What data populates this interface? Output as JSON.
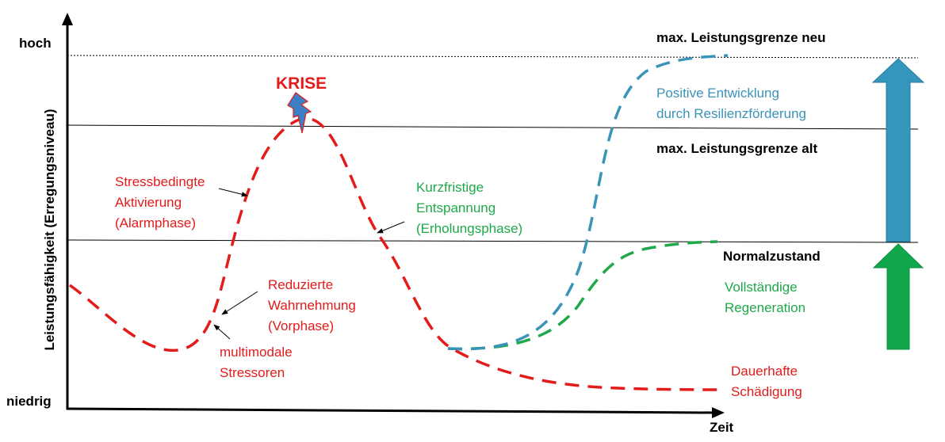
{
  "axis": {
    "y_label": "Leistungsfähigkeit (Erregungsniveau)",
    "y_high": "hoch",
    "y_low": "niedrig",
    "x_label": "Zeit"
  },
  "levels": {
    "new_limit": "max. Leistungsgrenze neu",
    "old_limit": "max. Leistungsgrenze alt",
    "normal": "Normalzustand"
  },
  "crisis": "KRISE",
  "annotations": {
    "alarm": [
      "Stressbedingte",
      "Aktivierung",
      "(Alarmphase)"
    ],
    "vorphase": [
      "Reduzierte",
      "Wahrnehmung",
      "(Vorphase)"
    ],
    "stressors": [
      "multimodale",
      "Stressoren"
    ],
    "relax": [
      "Kurzfristige",
      "Entspannung",
      "(Erholungsphase)"
    ],
    "positive": [
      "Positive Entwicklung",
      "durch Resilienzförderung"
    ],
    "regeneration": [
      "Vollständige",
      "Regeneration"
    ],
    "damage": [
      "Dauerhafte",
      "Schädigung"
    ]
  },
  "colors": {
    "stress": "#e31b1b",
    "recovery": "#1fa84a",
    "resilience": "#3b93b8",
    "arrow_blue": "#3496bd",
    "arrow_green": "#10a84a",
    "axis": "#000000"
  }
}
